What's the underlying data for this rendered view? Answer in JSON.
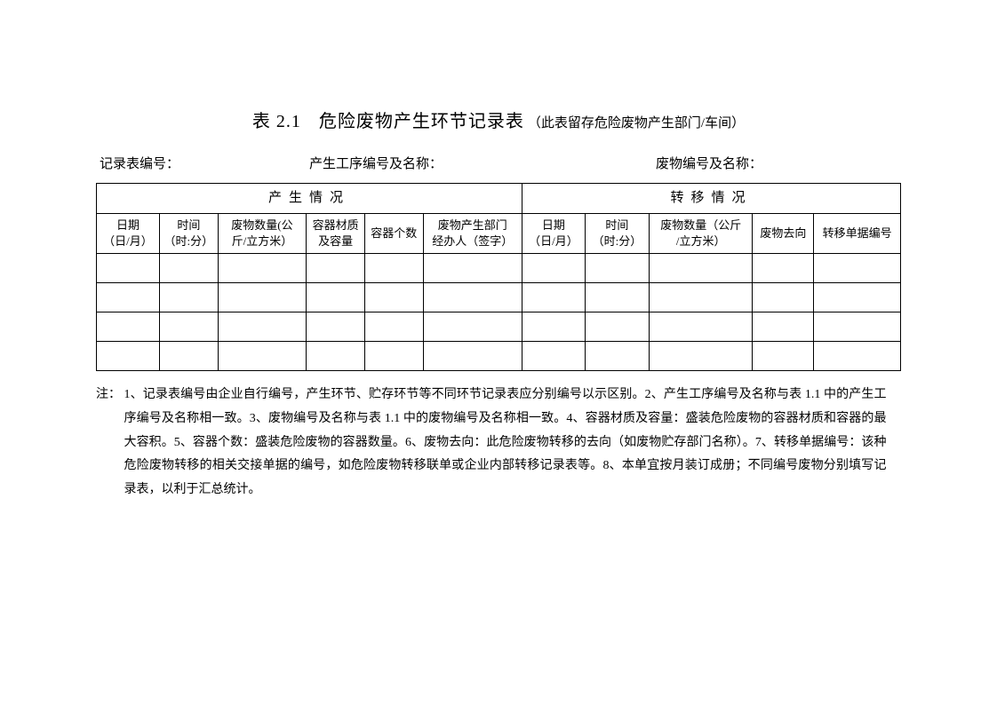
{
  "title": {
    "number": "表 2.1",
    "main": "危险废物产生环节记录表",
    "sub": "（此表留存危险废物产生部门/车间）"
  },
  "meta": {
    "record_no_label": "记录表编号：",
    "process_no_label": "产生工序编号及名称：",
    "waste_no_label": "废物编号及名称："
  },
  "table": {
    "group_headers": {
      "production": "产生情况",
      "transfer": "转移情况"
    },
    "columns": {
      "prod_date": "日期\n（日/月）",
      "prod_time": "时间\n（时:分）",
      "prod_qty": "废物数量(公\n斤/立方米）",
      "container_material": "容器材质\n及容量",
      "container_count": "容器个数",
      "handler": "废物产生部门\n经办人（签字）",
      "trans_date": "日期\n（日/月）",
      "trans_time": "时间\n（时:分）",
      "trans_qty": "废物数量（公斤\n/立方米）",
      "destination": "废物去向",
      "transfer_doc_no": "转移单据编号"
    },
    "col_widths": {
      "prod_date": 67,
      "prod_time": 62,
      "prod_qty": 94,
      "container_material": 62,
      "container_count": 62,
      "handler": 105,
      "trans_date": 67,
      "trans_time": 68,
      "trans_qty": 110,
      "destination": 65,
      "transfer_doc_no": 92
    },
    "data_row_count": 4
  },
  "footnote": {
    "label": "注：",
    "text": "1、记录表编号由企业自行编号，产生环节、贮存环节等不同环节记录表应分别编号以示区别。2、产生工序编号及名称与表 1.1 中的产生工序编号及名称相一致。3、废物编号及名称与表 1.1 中的废物编号及名称相一致。4、容器材质及容量：盛装危险废物的容器材质和容器的最大容积。5、容器个数：盛装危险废物的容器数量。6、废物去向：此危险废物转移的去向（如废物贮存部门名称）。7、转移单据编号：该种危险废物转移的相关交接单据的编号，如危险废物转移联单或企业内部转移记录表等。8、本单宜按月装订成册；不同编号废物分别填写记录表，以利于汇总统计。"
  }
}
